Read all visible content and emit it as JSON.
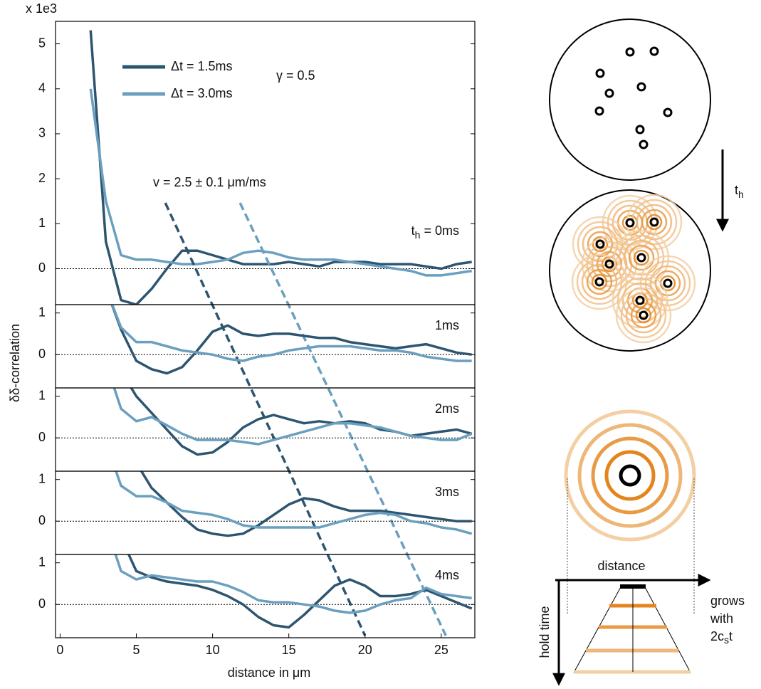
{
  "chart_data": [
    {
      "type": "line",
      "y_multiplier": "x 1e3",
      "ylabel": "δδ-correlation",
      "label_prefix": "t",
      "label_subscript": "h",
      "label": " = 0ms",
      "annotations": {
        "gamma": "γ = 0.5",
        "velocity": "v = 2.5 ± 0.1 μm/ms"
      },
      "guides": [
        {
          "color": "#2e5570",
          "x": [
            6.9,
            20.0
          ]
        },
        {
          "color": "#6a9fbf",
          "x": [
            11.8,
            25.3
          ]
        }
      ],
      "xlim": [
        -0.3,
        27.2
      ],
      "ylim": [
        -0.8,
        5.5
      ],
      "yticks": [
        0,
        1,
        2,
        3,
        4,
        5
      ],
      "x": [
        2,
        3,
        4,
        5,
        6,
        7,
        8,
        9,
        10,
        11,
        12,
        13,
        14,
        15,
        16,
        17,
        18,
        19,
        20,
        21,
        22,
        23,
        24,
        25,
        26,
        27
      ],
      "series": [
        {
          "name": "Δt = 1.5ms",
          "color": "#2e5570",
          "values": [
            5.3,
            0.6,
            -0.7,
            -0.8,
            -0.45,
            0,
            0.4,
            0.4,
            0.3,
            0.2,
            0.1,
            0.1,
            0.1,
            0.15,
            0.1,
            0.05,
            0.15,
            0.15,
            0.15,
            0.1,
            0.1,
            0.1,
            0.05,
            0,
            0.1,
            0.15
          ]
        },
        {
          "name": "Δt = 3.0ms",
          "color": "#6a9fbf",
          "values": [
            4.0,
            1.5,
            0.3,
            0.2,
            0.2,
            0.15,
            0.1,
            0.1,
            0.15,
            0.2,
            0.35,
            0.4,
            0.35,
            0.25,
            0.2,
            0.2,
            0.2,
            0.15,
            0.1,
            0.05,
            0,
            -0.05,
            -0.15,
            -0.15,
            -0.1,
            -0.05
          ]
        }
      ]
    },
    {
      "type": "line",
      "label": "1ms",
      "xlim": [
        -0.3,
        27.2
      ],
      "ylim": [
        -0.8,
        1.2
      ],
      "yticks": [
        0,
        1
      ],
      "x": [
        2,
        3,
        4,
        5,
        6,
        7,
        8,
        9,
        10,
        11,
        12,
        13,
        14,
        15,
        16,
        17,
        18,
        19,
        20,
        21,
        22,
        23,
        24,
        25,
        26,
        27
      ],
      "series": [
        {
          "color": "#2e5570",
          "values": [
            null,
            1.6,
            0.6,
            -0.15,
            -0.35,
            -0.45,
            -0.3,
            0.1,
            0.55,
            0.7,
            0.5,
            0.45,
            0.5,
            0.5,
            0.45,
            0.4,
            0.4,
            0.3,
            0.25,
            0.2,
            0.15,
            0.2,
            0.25,
            0.15,
            0.05,
            0
          ]
        },
        {
          "color": "#6a9fbf",
          "values": [
            null,
            1.6,
            0.65,
            0.3,
            0.3,
            0.2,
            0.1,
            0.05,
            0,
            -0.1,
            -0.15,
            -0.05,
            0,
            0.1,
            0.15,
            0.2,
            0.2,
            0.2,
            0.15,
            0.1,
            0.1,
            0.05,
            -0.05,
            -0.1,
            -0.15,
            -0.15
          ]
        }
      ]
    },
    {
      "type": "line",
      "label": "2ms",
      "xlim": [
        -0.3,
        27.2
      ],
      "ylim": [
        -0.8,
        1.2
      ],
      "yticks": [
        0,
        1
      ],
      "x": [
        2,
        3,
        4,
        5,
        6,
        7,
        8,
        9,
        10,
        11,
        12,
        13,
        14,
        15,
        16,
        17,
        18,
        19,
        20,
        21,
        22,
        23,
        24,
        25,
        26,
        27
      ],
      "series": [
        {
          "color": "#2e5570",
          "values": [
            null,
            null,
            1.6,
            1.0,
            0.6,
            0.2,
            -0.2,
            -0.4,
            -0.35,
            -0.1,
            0.25,
            0.45,
            0.55,
            0.45,
            0.35,
            0.4,
            0.35,
            0.4,
            0.35,
            0.2,
            0.15,
            0.05,
            0.1,
            0.15,
            0.2,
            0.1
          ]
        },
        {
          "color": "#6a9fbf",
          "values": [
            null,
            1.8,
            0.7,
            0.4,
            0.5,
            0.3,
            0.1,
            -0.05,
            -0.05,
            -0.05,
            -0.1,
            -0.15,
            -0.05,
            0.05,
            0.15,
            0.25,
            0.35,
            0.35,
            0.3,
            0.25,
            0.15,
            0.05,
            0,
            -0.05,
            -0.05,
            0.1
          ]
        }
      ]
    },
    {
      "type": "line",
      "label": "3ms",
      "xlim": [
        -0.3,
        27.2
      ],
      "ylim": [
        -0.8,
        1.2
      ],
      "yticks": [
        0,
        1
      ],
      "x": [
        2,
        3,
        4,
        5,
        6,
        7,
        8,
        9,
        10,
        11,
        12,
        13,
        14,
        15,
        16,
        17,
        18,
        19,
        20,
        21,
        22,
        23,
        24,
        25,
        26,
        27
      ],
      "series": [
        {
          "color": "#2e5570",
          "values": [
            null,
            null,
            null,
            1.4,
            0.8,
            0.45,
            0.1,
            -0.2,
            -0.3,
            -0.35,
            -0.3,
            -0.1,
            0.15,
            0.4,
            0.55,
            0.5,
            0.35,
            0.25,
            0.25,
            0.25,
            0.2,
            0.15,
            0.1,
            0.05,
            0,
            0
          ]
        },
        {
          "color": "#6a9fbf",
          "values": [
            null,
            1.9,
            0.85,
            0.6,
            0.6,
            0.45,
            0.25,
            0.2,
            0.15,
            0.05,
            -0.1,
            -0.15,
            -0.15,
            -0.15,
            -0.15,
            -0.15,
            -0.05,
            0.05,
            0.15,
            0.2,
            0.15,
            0,
            -0.05,
            -0.15,
            -0.2,
            -0.3
          ]
        }
      ]
    },
    {
      "type": "line",
      "label": "4ms",
      "xlabel": "distance in μm",
      "xlim": [
        -0.3,
        27.2
      ],
      "ylim": [
        -0.8,
        1.2
      ],
      "yticks": [
        0,
        1
      ],
      "xticks": [
        0,
        5,
        10,
        15,
        20,
        25
      ],
      "x": [
        2,
        3,
        4,
        5,
        6,
        7,
        8,
        9,
        10,
        11,
        12,
        13,
        14,
        15,
        16,
        17,
        18,
        19,
        20,
        21,
        22,
        23,
        24,
        25,
        26,
        27
      ],
      "series": [
        {
          "color": "#2e5570",
          "values": [
            null,
            null,
            1.6,
            0.8,
            0.65,
            0.55,
            0.5,
            0.45,
            0.35,
            0.2,
            0,
            -0.3,
            -0.5,
            -0.55,
            -0.25,
            0.1,
            0.45,
            0.6,
            0.45,
            0.2,
            0.2,
            0.25,
            0.35,
            0.2,
            0.05,
            -0.1
          ]
        },
        {
          "color": "#6a9fbf",
          "values": [
            null,
            1.9,
            0.8,
            0.6,
            0.7,
            0.65,
            0.6,
            0.55,
            0.55,
            0.45,
            0.3,
            0.1,
            0.05,
            0.05,
            0,
            -0.05,
            -0.15,
            -0.2,
            -0.15,
            0,
            0.1,
            0.15,
            0.4,
            0.25,
            0.2,
            0.15
          ]
        }
      ]
    }
  ],
  "diagram": {
    "arrow_main": "t",
    "arrow_sub": "h",
    "axis_x_label": "distance",
    "axis_y_label": "hold time",
    "growth_line1": "grows",
    "growth_line2": "with",
    "growth_main": "2c",
    "growth_sub": "s",
    "growth_rest": "t"
  }
}
